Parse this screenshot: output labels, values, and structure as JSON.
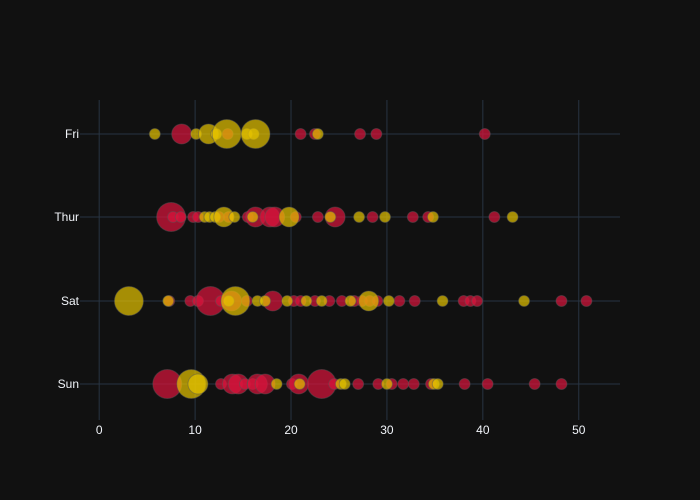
{
  "chart_data": {
    "type": "scatter",
    "title": "",
    "xlabel": "",
    "ylabel": "",
    "xlim": [
      -2,
      54.3
    ],
    "x_ticks": [
      0,
      10,
      20,
      30,
      40,
      50
    ],
    "categories": [
      "Sun",
      "Sat",
      "Thur",
      "Fri"
    ],
    "grid": true,
    "legend": "none",
    "colors": {
      "background": "#111111",
      "grid": "#283442",
      "zeroline": "#283442",
      "text": "#f2f5fa",
      "series_a": "#dc143c",
      "series_b": "#e6c300"
    },
    "series": [
      {
        "key": "a",
        "points": [
          {
            "y": "Fri",
            "x": 8.6,
            "s": 2
          },
          {
            "y": "Fri",
            "x": 13.4,
            "s": 1
          },
          {
            "y": "Fri",
            "x": 21.0,
            "s": 1
          },
          {
            "y": "Fri",
            "x": 22.5,
            "s": 1
          },
          {
            "y": "Fri",
            "x": 27.2,
            "s": 1
          },
          {
            "y": "Fri",
            "x": 28.9,
            "s": 1
          },
          {
            "y": "Fri",
            "x": 40.2,
            "s": 1
          },
          {
            "y": "Thur",
            "x": 7.5,
            "s": 3
          },
          {
            "y": "Thur",
            "x": 7.7,
            "s": 1
          },
          {
            "y": "Thur",
            "x": 8.5,
            "s": 1
          },
          {
            "y": "Thur",
            "x": 9.8,
            "s": 1
          },
          {
            "y": "Thur",
            "x": 10.3,
            "s": 1
          },
          {
            "y": "Thur",
            "x": 12.5,
            "s": 1
          },
          {
            "y": "Thur",
            "x": 13.5,
            "s": 1
          },
          {
            "y": "Thur",
            "x": 15.5,
            "s": 1
          },
          {
            "y": "Thur",
            "x": 16.3,
            "s": 2
          },
          {
            "y": "Thur",
            "x": 17.8,
            "s": 2
          },
          {
            "y": "Thur",
            "x": 18.3,
            "s": 2
          },
          {
            "y": "Thur",
            "x": 20.5,
            "s": 1
          },
          {
            "y": "Thur",
            "x": 22.8,
            "s": 1
          },
          {
            "y": "Thur",
            "x": 24.6,
            "s": 2
          },
          {
            "y": "Thur",
            "x": 28.5,
            "s": 1
          },
          {
            "y": "Thur",
            "x": 32.7,
            "s": 1
          },
          {
            "y": "Thur",
            "x": 34.3,
            "s": 1
          },
          {
            "y": "Thur",
            "x": 41.2,
            "s": 1
          },
          {
            "y": "Sat",
            "x": 7.3,
            "s": 1
          },
          {
            "y": "Sat",
            "x": 9.5,
            "s": 1
          },
          {
            "y": "Sat",
            "x": 10.3,
            "s": 1
          },
          {
            "y": "Sat",
            "x": 11.6,
            "s": 3
          },
          {
            "y": "Sat",
            "x": 12.7,
            "s": 1
          },
          {
            "y": "Sat",
            "x": 13.8,
            "s": 2
          },
          {
            "y": "Sat",
            "x": 15.4,
            "s": 1
          },
          {
            "y": "Sat",
            "x": 18.1,
            "s": 2
          },
          {
            "y": "Sat",
            "x": 20.3,
            "s": 1
          },
          {
            "y": "Sat",
            "x": 21.0,
            "s": 1
          },
          {
            "y": "Sat",
            "x": 22.5,
            "s": 1
          },
          {
            "y": "Sat",
            "x": 24.0,
            "s": 1
          },
          {
            "y": "Sat",
            "x": 25.3,
            "s": 1
          },
          {
            "y": "Sat",
            "x": 26.6,
            "s": 1
          },
          {
            "y": "Sat",
            "x": 27.4,
            "s": 1
          },
          {
            "y": "Sat",
            "x": 28.2,
            "s": 1
          },
          {
            "y": "Sat",
            "x": 29.0,
            "s": 1
          },
          {
            "y": "Sat",
            "x": 31.3,
            "s": 1
          },
          {
            "y": "Sat",
            "x": 32.9,
            "s": 1
          },
          {
            "y": "Sat",
            "x": 38.0,
            "s": 1
          },
          {
            "y": "Sat",
            "x": 38.7,
            "s": 1
          },
          {
            "y": "Sat",
            "x": 39.4,
            "s": 1
          },
          {
            "y": "Sat",
            "x": 48.2,
            "s": 1
          },
          {
            "y": "Sat",
            "x": 50.8,
            "s": 1
          },
          {
            "y": "Sun",
            "x": 7.1,
            "s": 3
          },
          {
            "y": "Sun",
            "x": 12.7,
            "s": 1
          },
          {
            "y": "Sun",
            "x": 13.9,
            "s": 2
          },
          {
            "y": "Sun",
            "x": 14.5,
            "s": 2
          },
          {
            "y": "Sun",
            "x": 15.2,
            "s": 1
          },
          {
            "y": "Sun",
            "x": 16.0,
            "s": 1
          },
          {
            "y": "Sun",
            "x": 16.5,
            "s": 2
          },
          {
            "y": "Sun",
            "x": 17.3,
            "s": 2
          },
          {
            "y": "Sun",
            "x": 20.1,
            "s": 1
          },
          {
            "y": "Sun",
            "x": 20.8,
            "s": 2
          },
          {
            "y": "Sun",
            "x": 23.2,
            "s": 3
          },
          {
            "y": "Sun",
            "x": 24.5,
            "s": 1
          },
          {
            "y": "Sun",
            "x": 27.0,
            "s": 1
          },
          {
            "y": "Sun",
            "x": 29.1,
            "s": 1
          },
          {
            "y": "Sun",
            "x": 30.5,
            "s": 1
          },
          {
            "y": "Sun",
            "x": 31.7,
            "s": 1
          },
          {
            "y": "Sun",
            "x": 32.8,
            "s": 1
          },
          {
            "y": "Sun",
            "x": 34.6,
            "s": 1
          },
          {
            "y": "Sun",
            "x": 38.1,
            "s": 1
          },
          {
            "y": "Sun",
            "x": 40.5,
            "s": 1
          },
          {
            "y": "Sun",
            "x": 45.4,
            "s": 1
          },
          {
            "y": "Sun",
            "x": 48.2,
            "s": 1
          }
        ]
      },
      {
        "key": "b",
        "points": [
          {
            "y": "Fri",
            "x": 5.8,
            "s": 1
          },
          {
            "y": "Fri",
            "x": 10.1,
            "s": 1
          },
          {
            "y": "Fri",
            "x": 11.4,
            "s": 2
          },
          {
            "y": "Fri",
            "x": 12.2,
            "s": 1
          },
          {
            "y": "Fri",
            "x": 13.3,
            "s": 3
          },
          {
            "y": "Fri",
            "x": 15.4,
            "s": 1
          },
          {
            "y": "Fri",
            "x": 16.1,
            "s": 1
          },
          {
            "y": "Fri",
            "x": 16.3,
            "s": 3
          },
          {
            "y": "Fri",
            "x": 22.8,
            "s": 1
          },
          {
            "y": "Thur",
            "x": 11.0,
            "s": 1
          },
          {
            "y": "Thur",
            "x": 11.5,
            "s": 1
          },
          {
            "y": "Thur",
            "x": 12.1,
            "s": 1
          },
          {
            "y": "Thur",
            "x": 13.0,
            "s": 2
          },
          {
            "y": "Thur",
            "x": 14.1,
            "s": 1
          },
          {
            "y": "Thur",
            "x": 16.0,
            "s": 1
          },
          {
            "y": "Thur",
            "x": 19.8,
            "s": 2
          },
          {
            "y": "Thur",
            "x": 24.1,
            "s": 1
          },
          {
            "y": "Thur",
            "x": 27.1,
            "s": 1
          },
          {
            "y": "Thur",
            "x": 29.8,
            "s": 1
          },
          {
            "y": "Thur",
            "x": 34.8,
            "s": 1
          },
          {
            "y": "Thur",
            "x": 43.1,
            "s": 1
          },
          {
            "y": "Sat",
            "x": 3.1,
            "s": 3
          },
          {
            "y": "Sat",
            "x": 7.2,
            "s": 1
          },
          {
            "y": "Sat",
            "x": 13.5,
            "s": 1
          },
          {
            "y": "Sat",
            "x": 14.2,
            "s": 3
          },
          {
            "y": "Sat",
            "x": 16.5,
            "s": 1
          },
          {
            "y": "Sat",
            "x": 17.3,
            "s": 1
          },
          {
            "y": "Sat",
            "x": 19.6,
            "s": 1
          },
          {
            "y": "Sat",
            "x": 21.6,
            "s": 1
          },
          {
            "y": "Sat",
            "x": 23.2,
            "s": 1
          },
          {
            "y": "Sat",
            "x": 26.2,
            "s": 1
          },
          {
            "y": "Sat",
            "x": 28.1,
            "s": 2
          },
          {
            "y": "Sat",
            "x": 30.2,
            "s": 1
          },
          {
            "y": "Sat",
            "x": 35.8,
            "s": 1
          },
          {
            "y": "Sat",
            "x": 44.3,
            "s": 1
          },
          {
            "y": "Sun",
            "x": 9.6,
            "s": 3
          },
          {
            "y": "Sun",
            "x": 10.3,
            "s": 2
          },
          {
            "y": "Sun",
            "x": 18.5,
            "s": 1
          },
          {
            "y": "Sun",
            "x": 20.9,
            "s": 1
          },
          {
            "y": "Sun",
            "x": 25.2,
            "s": 1
          },
          {
            "y": "Sun",
            "x": 25.6,
            "s": 1
          },
          {
            "y": "Sun",
            "x": 30.0,
            "s": 1
          },
          {
            "y": "Sun",
            "x": 34.9,
            "s": 1
          },
          {
            "y": "Sun",
            "x": 35.3,
            "s": 1
          }
        ]
      }
    ]
  }
}
